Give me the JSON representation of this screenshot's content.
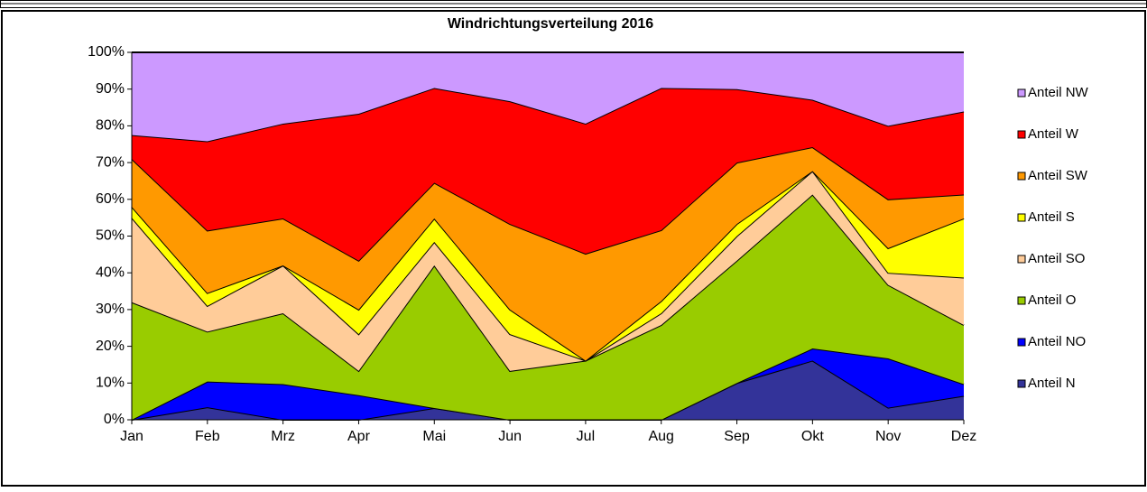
{
  "chart_data": {
    "type": "area",
    "stacked": true,
    "title": "Windrichtungsverteilung 2016",
    "categories": [
      "Jan",
      "Feb",
      "Mrz",
      "Apr",
      "Mai",
      "Jun",
      "Jul",
      "Aug",
      "Sep",
      "Okt",
      "Nov",
      "Dez"
    ],
    "series": [
      {
        "name": "Anteil N",
        "color": "#333399",
        "values": [
          0,
          3.4,
          0,
          0,
          3.2,
          0,
          0,
          0,
          10,
          16.1,
          3.3,
          6.5
        ]
      },
      {
        "name": "Anteil NO",
        "color": "#0000ff",
        "values": [
          0,
          7,
          9.7,
          6.7,
          0,
          0,
          0,
          0,
          0,
          3.3,
          13.4,
          3.2
        ]
      },
      {
        "name": "Anteil O",
        "color": "#99cc00",
        "values": [
          32,
          13.6,
          19.3,
          6.6,
          38.8,
          13.3,
          16.1,
          25.8,
          33.3,
          41.9,
          20,
          16.1
        ]
      },
      {
        "name": "Anteil SO",
        "color": "#ffcc99",
        "values": [
          23,
          7,
          13,
          10,
          6.4,
          10,
          0,
          3.2,
          6.7,
          6.4,
          3.3,
          12.9
        ]
      },
      {
        "name": "Anteil S",
        "color": "#ffff00",
        "values": [
          3,
          3.5,
          0,
          6.7,
          6.4,
          6.7,
          0,
          3.3,
          3.3,
          0,
          6.7,
          16.1
        ]
      },
      {
        "name": "Anteil SW",
        "color": "#ff9900",
        "values": [
          13,
          17,
          12.8,
          13.3,
          9.7,
          23.3,
          29.1,
          19.3,
          16.7,
          6.5,
          13.3,
          6.5
        ]
      },
      {
        "name": "Anteil W",
        "color": "#ff0000",
        "values": [
          6.5,
          24.3,
          25.8,
          40,
          25.8,
          33.4,
          35.4,
          38.7,
          20,
          12.9,
          20,
          22.6
        ]
      },
      {
        "name": "Anteil NW",
        "color": "#cc99ff",
        "values": [
          22.5,
          24.2,
          19.4,
          16.7,
          9.7,
          13.3,
          19.4,
          9.7,
          10,
          12.9,
          20,
          16.1
        ]
      }
    ],
    "ylim": [
      0,
      100
    ],
    "yticks": [
      {
        "value": 0,
        "label": "0%"
      },
      {
        "value": 10,
        "label": "10%"
      },
      {
        "value": 20,
        "label": "20%"
      },
      {
        "value": 30,
        "label": "30%"
      },
      {
        "value": 40,
        "label": "40%"
      },
      {
        "value": 50,
        "label": "50%"
      },
      {
        "value": 60,
        "label": "60%"
      },
      {
        "value": 70,
        "label": "70%"
      },
      {
        "value": 80,
        "label": "80%"
      },
      {
        "value": 90,
        "label": "90%"
      },
      {
        "value": 100,
        "label": "100%"
      }
    ],
    "grid": false,
    "legend": "right"
  }
}
